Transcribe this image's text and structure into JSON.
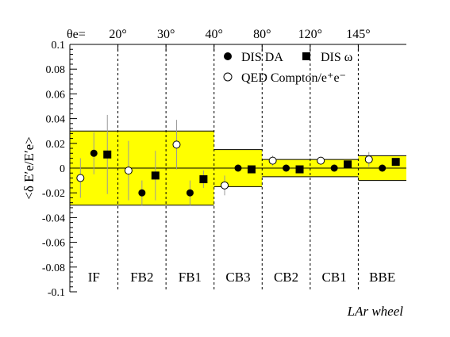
{
  "chart_data": {
    "type": "scatter",
    "xlabel": "LAr wheel",
    "ylabel": "<δ E′e/E′e>",
    "ylim": [
      -0.1,
      0.1
    ],
    "yticks": [
      -0.1,
      -0.08,
      -0.06,
      -0.04,
      -0.02,
      0,
      0.02,
      0.04,
      0.06,
      0.08,
      0.1
    ],
    "ytick_labels": [
      "-0.1",
      "-0.08",
      "-0.06",
      "-0.04",
      "-0.02",
      "0",
      "0.02",
      "0.04",
      "0.06",
      "0.08",
      "0.1"
    ],
    "theta_prefix": "θe=",
    "theta_ticks": [
      {
        "boundary": 1,
        "label": "20°"
      },
      {
        "boundary": 2,
        "label": "30°"
      },
      {
        "boundary": 3,
        "label": "40°"
      },
      {
        "boundary": 4,
        "label": "80°"
      },
      {
        "boundary": 5,
        "label": "120°"
      },
      {
        "boundary": 6,
        "label": "145°"
      }
    ],
    "regions": [
      "IF",
      "FB2",
      "FB1",
      "CB3",
      "CB2",
      "CB1",
      "BBE"
    ],
    "uncertainty_bands": [
      {
        "from": 0,
        "to": 3,
        "half_width": 0.03
      },
      {
        "from": 3,
        "to": 4,
        "half_width": 0.015
      },
      {
        "from": 4,
        "to": 6,
        "half_width": 0.007
      },
      {
        "from": 6,
        "to": 7,
        "half_width": 0.01
      }
    ],
    "band_color": "#ffff00",
    "legend": {
      "da": "DIS DA",
      "omega": "DIS ω",
      "qed": "QED Compton/e⁺e⁻"
    },
    "series": [
      {
        "name": "QED Compton/e⁺e⁻",
        "marker": "open-circle",
        "points": [
          {
            "region": "IF",
            "y": -0.008,
            "err": 0.016
          },
          {
            "region": "FB2",
            "y": -0.002,
            "err": 0.024
          },
          {
            "region": "FB1",
            "y": 0.019,
            "err": 0.02
          },
          {
            "region": "CB3",
            "y": -0.014,
            "err": 0.008
          },
          {
            "region": "CB2",
            "y": 0.006,
            "err": 0.004
          },
          {
            "region": "CB1",
            "y": 0.006,
            "err": 0.003
          },
          {
            "region": "BBE",
            "y": 0.007,
            "err": 0.006
          }
        ]
      },
      {
        "name": "DIS DA",
        "marker": "filled-circle",
        "points": [
          {
            "region": "IF",
            "y": 0.012,
            "err": 0.017
          },
          {
            "region": "FB2",
            "y": -0.02,
            "err": 0.01
          },
          {
            "region": "FB1",
            "y": -0.02,
            "err": 0.01
          },
          {
            "region": "CB3",
            "y": 0.0,
            "err": 0.001
          },
          {
            "region": "CB2",
            "y": 0.0,
            "err": 0.001
          },
          {
            "region": "CB1",
            "y": 0.0,
            "err": 0.001
          },
          {
            "region": "BBE",
            "y": 0.0,
            "err": 0.001
          }
        ]
      },
      {
        "name": "DIS ω",
        "marker": "filled-square",
        "points": [
          {
            "region": "IF",
            "y": 0.011,
            "err": 0.032
          },
          {
            "region": "FB2",
            "y": -0.006,
            "err": 0.02
          },
          {
            "region": "FB1",
            "y": -0.009,
            "err": 0.007
          },
          {
            "region": "CB3",
            "y": -0.001,
            "err": 0.002
          },
          {
            "region": "CB2",
            "y": -0.001,
            "err": 0.002
          },
          {
            "region": "CB1",
            "y": 0.003,
            "err": 0.002
          },
          {
            "region": "BBE",
            "y": 0.005,
            "err": 0.002
          }
        ]
      }
    ]
  }
}
